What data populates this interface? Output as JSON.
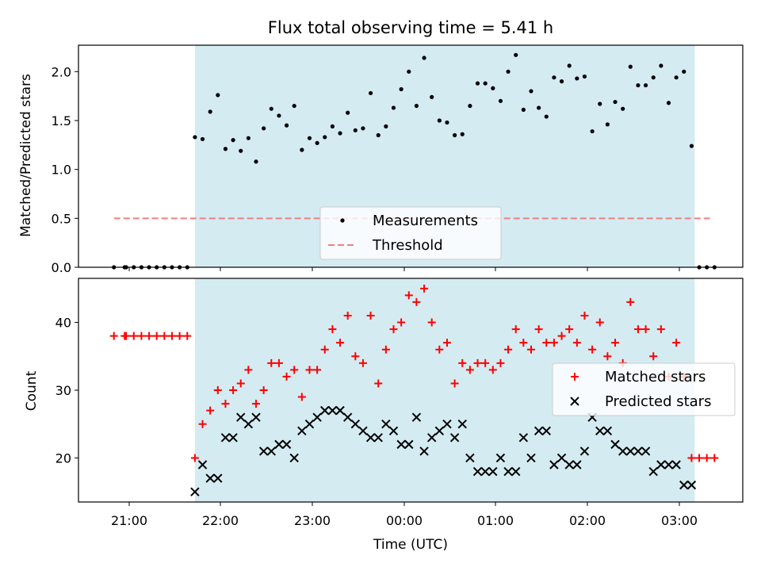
{
  "chart_data": {
    "type": "scatter",
    "title": "Flux total observing time = 5.41 h",
    "xlabel": "Time (UTC)",
    "xticks": [
      "21:00",
      "22:00",
      "23:00",
      "00:00",
      "01:00",
      "02:00",
      "03:00"
    ],
    "observing_window": {
      "start": "21:43",
      "end": "03:10",
      "color": "#add8e6"
    },
    "colors": {
      "measurements": "#000000",
      "threshold": "#f08080",
      "matched": "#ff0000",
      "predicted": "#000000",
      "shade": "#add8e6"
    },
    "panels": [
      {
        "ylabel": "Matched/Predicted stars",
        "ylim": [
          0,
          2.27
        ],
        "yticks": [
          "0.0",
          "0.5",
          "1.0",
          "1.5",
          "2.0"
        ],
        "legend": {
          "position": "lower center",
          "entries": [
            "Measurements",
            "Threshold"
          ]
        },
        "series": [
          {
            "name": "Measurements",
            "marker": "dot",
            "x": [
              "20:50",
              "20:57",
              "20:58",
              "21:03",
              "21:08",
              "21:13",
              "21:18",
              "21:23",
              "21:28",
              "21:33",
              "21:38",
              "21:43",
              "21:48",
              "21:53",
              "21:58",
              "22:03",
              "22:08",
              "22:13",
              "22:18",
              "22:23",
              "22:28",
              "22:33",
              "22:38",
              "22:43",
              "22:48",
              "22:53",
              "22:58",
              "23:03",
              "23:08",
              "23:13",
              "23:18",
              "23:23",
              "23:28",
              "23:33",
              "23:38",
              "23:43",
              "23:48",
              "23:53",
              "23:58",
              "00:03",
              "00:08",
              "00:13",
              "00:18",
              "00:23",
              "00:28",
              "00:33",
              "00:38",
              "00:43",
              "00:48",
              "00:53",
              "00:58",
              "01:03",
              "01:08",
              "01:13",
              "01:18",
              "01:23",
              "01:28",
              "01:33",
              "01:38",
              "01:43",
              "01:48",
              "01:53",
              "01:58",
              "02:03",
              "02:08",
              "02:13",
              "02:18",
              "02:23",
              "02:28",
              "02:33",
              "02:38",
              "02:43",
              "02:48",
              "02:53",
              "02:58",
              "03:03",
              "03:08",
              "03:13",
              "03:18",
              "03:23"
            ],
            "values": [
              0,
              0,
              0,
              0,
              0,
              0,
              0,
              0,
              0,
              0,
              0,
              1.33,
              1.31,
              1.59,
              1.76,
              1.21,
              1.3,
              1.19,
              1.32,
              1.08,
              1.42,
              1.62,
              1.55,
              1.45,
              1.65,
              1.2,
              1.32,
              1.27,
              1.33,
              1.44,
              1.37,
              1.58,
              1.4,
              1.42,
              1.78,
              1.35,
              1.44,
              1.63,
              1.82,
              2.0,
              1.65,
              2.14,
              1.74,
              1.5,
              1.48,
              1.35,
              1.36,
              1.65,
              1.88,
              1.88,
              1.83,
              1.7,
              2.0,
              2.17,
              1.61,
              1.8,
              1.63,
              1.54,
              1.94,
              1.9,
              2.06,
              1.93,
              1.95,
              1.39,
              1.67,
              1.46,
              1.69,
              1.62,
              2.05,
              1.86,
              1.86,
              1.94,
              2.06,
              1.68,
              1.94,
              2.0,
              1.24,
              0,
              0,
              0
            ]
          },
          {
            "name": "Threshold",
            "marker": "dashed-line",
            "x": [
              "20:50",
              "03:20"
            ],
            "values": [
              0.5,
              0.5
            ]
          }
        ]
      },
      {
        "ylabel": "Count",
        "ylim": [
          13.5,
          46.5
        ],
        "yticks": [
          "20",
          "30",
          "40"
        ],
        "legend": {
          "position": "center right",
          "entries": [
            "Matched stars",
            "Predicted stars"
          ]
        },
        "series": [
          {
            "name": "Matched stars",
            "marker": "plus",
            "x": [
              "20:50",
              "20:57",
              "20:58",
              "21:03",
              "21:08",
              "21:13",
              "21:18",
              "21:23",
              "21:28",
              "21:33",
              "21:38",
              "21:43",
              "21:48",
              "21:53",
              "21:58",
              "22:03",
              "22:08",
              "22:13",
              "22:18",
              "22:23",
              "22:28",
              "22:33",
              "22:38",
              "22:43",
              "22:48",
              "22:53",
              "22:58",
              "23:03",
              "23:08",
              "23:13",
              "23:18",
              "23:23",
              "23:28",
              "23:33",
              "23:38",
              "23:43",
              "23:48",
              "23:53",
              "23:58",
              "00:03",
              "00:08",
              "00:13",
              "00:18",
              "00:23",
              "00:28",
              "00:33",
              "00:38",
              "00:43",
              "00:48",
              "00:53",
              "00:58",
              "01:03",
              "01:08",
              "01:13",
              "01:18",
              "01:23",
              "01:28",
              "01:33",
              "01:38",
              "01:43",
              "01:48",
              "01:53",
              "01:58",
              "02:03",
              "02:08",
              "02:13",
              "02:18",
              "02:23",
              "02:28",
              "02:33",
              "02:38",
              "02:43",
              "02:48",
              "02:53",
              "02:58",
              "03:03",
              "03:08",
              "03:13",
              "03:18",
              "03:23"
            ],
            "values": [
              38,
              38,
              38,
              38,
              38,
              38,
              38,
              38,
              38,
              38,
              38,
              20,
              25,
              27,
              30,
              28,
              30,
              31,
              33,
              28,
              30,
              34,
              34,
              32,
              33,
              29,
              33,
              33,
              36,
              39,
              37,
              41,
              35,
              34,
              41,
              31,
              36,
              39,
              40,
              44,
              43,
              45,
              40,
              36,
              37,
              31,
              34,
              33,
              34,
              34,
              33,
              34,
              36,
              39,
              37,
              36,
              39,
              37,
              37,
              38,
              39,
              37,
              41,
              36,
              40,
              35,
              37,
              34,
              43,
              39,
              39,
              35,
              39,
              32,
              37,
              32,
              20,
              20,
              20,
              20
            ]
          },
          {
            "name": "Predicted stars",
            "marker": "x",
            "x": [
              "21:43",
              "21:48",
              "21:53",
              "21:58",
              "22:03",
              "22:08",
              "22:13",
              "22:18",
              "22:23",
              "22:28",
              "22:33",
              "22:38",
              "22:43",
              "22:48",
              "22:53",
              "22:58",
              "23:03",
              "23:08",
              "23:13",
              "23:18",
              "23:23",
              "23:28",
              "23:33",
              "23:38",
              "23:43",
              "23:48",
              "23:53",
              "23:58",
              "00:03",
              "00:08",
              "00:13",
              "00:18",
              "00:23",
              "00:28",
              "00:33",
              "00:38",
              "00:43",
              "00:48",
              "00:53",
              "00:58",
              "01:03",
              "01:08",
              "01:13",
              "01:18",
              "01:23",
              "01:28",
              "01:33",
              "01:38",
              "01:43",
              "01:48",
              "01:53",
              "01:58",
              "02:03",
              "02:08",
              "02:13",
              "02:18",
              "02:23",
              "02:28",
              "02:33",
              "02:38",
              "02:43",
              "02:48",
              "02:53",
              "02:58",
              "03:03",
              "03:08"
            ],
            "values": [
              15,
              19,
              17,
              17,
              23,
              23,
              26,
              25,
              26,
              21,
              21,
              22,
              22,
              20,
              24,
              25,
              26,
              27,
              27,
              27,
              26,
              25,
              24,
              23,
              23,
              25,
              24,
              22,
              22,
              26,
              21,
              23,
              24,
              25,
              23,
              25,
              20,
              18,
              18,
              18,
              20,
              18,
              18,
              23,
              20,
              24,
              24,
              19,
              20,
              19,
              19,
              21,
              26,
              24,
              24,
              22,
              21,
              21,
              21,
              21,
              18,
              19,
              19,
              19,
              16,
              16
            ]
          }
        ]
      }
    ]
  }
}
